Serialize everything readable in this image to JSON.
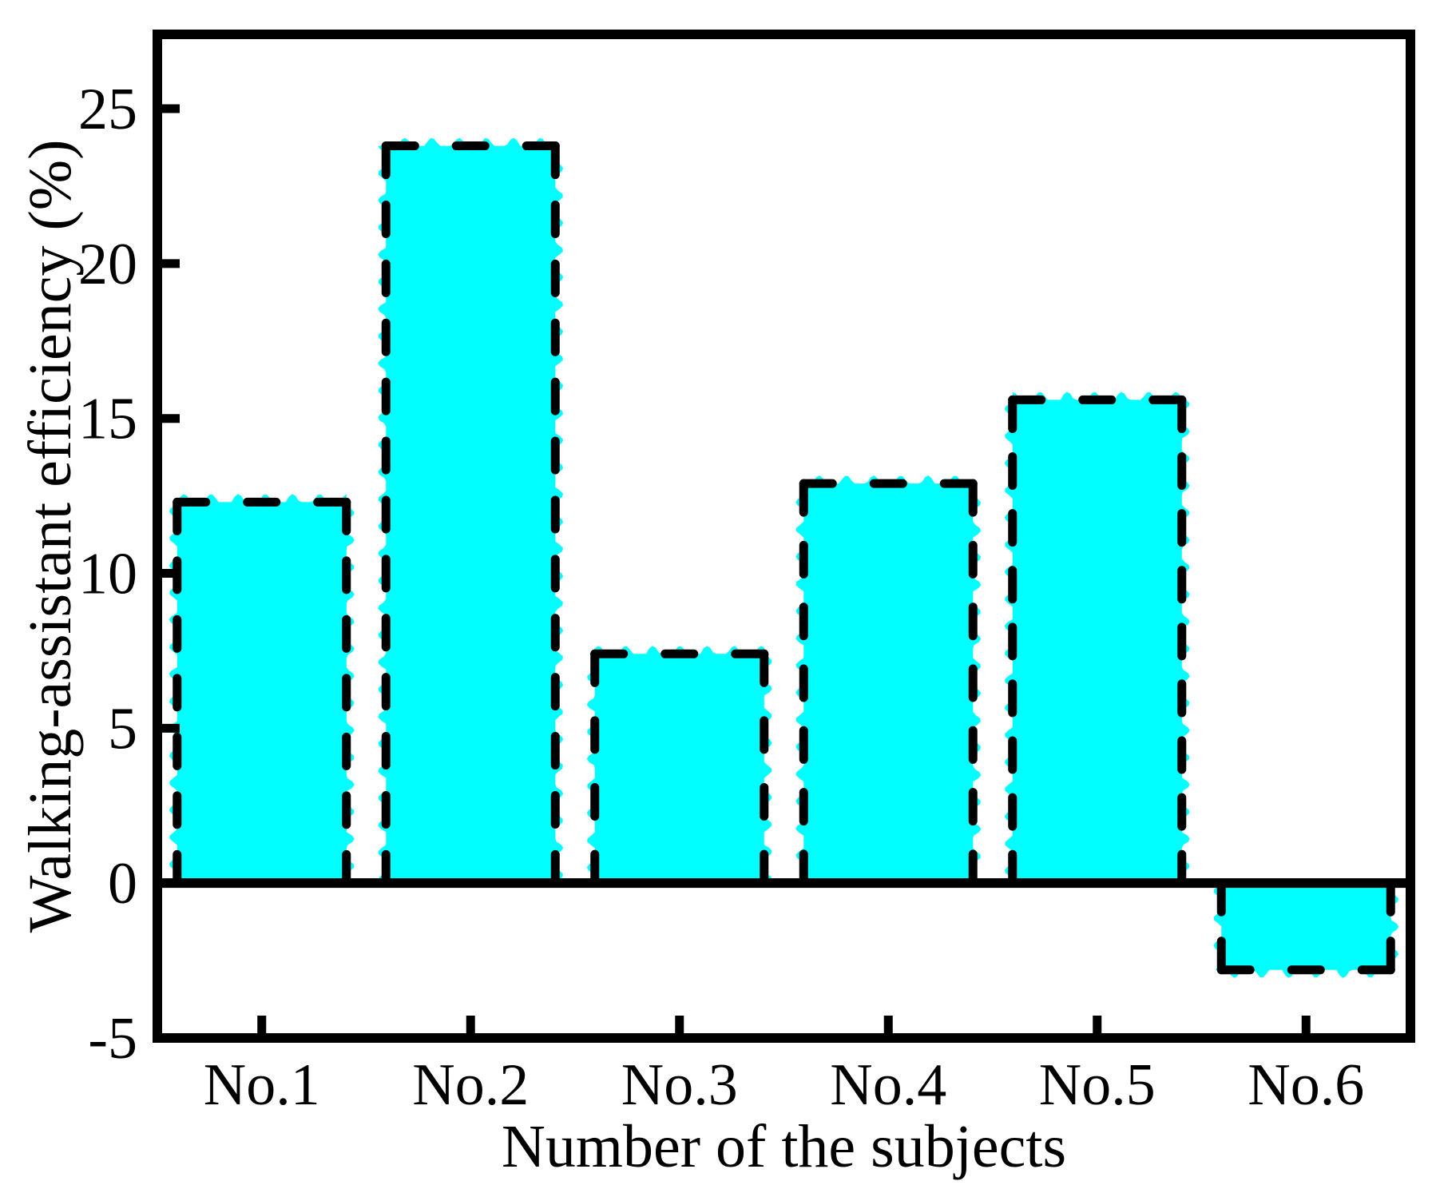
{
  "figure": {
    "background": "#ffffff"
  },
  "chart_data": {
    "type": "bar",
    "title": "",
    "xlabel": "Number of the subjects",
    "ylabel": "Walking-assistant efficiency (%)",
    "categories": [
      "No.1",
      "No.2",
      "No.3",
      "No.4",
      "No.5",
      "No.6"
    ],
    "values": [
      12.3,
      23.8,
      7.4,
      12.9,
      15.6,
      -2.8
    ],
    "ylim": [
      -5,
      27.4
    ],
    "yticks": [
      -5,
      0,
      5,
      10,
      15,
      20,
      25
    ],
    "ytick_labels": [
      "-5",
      "0",
      "5",
      "10",
      "15",
      "20",
      "25"
    ],
    "grid": false,
    "legend": null,
    "zero_line": true,
    "bar_fill_color": "#00FFFF",
    "bar_edge_color": "#000000",
    "bar_edge_style": "dashed",
    "bar_fill_style": "wavy-sketch",
    "axis_color": "#000000"
  }
}
